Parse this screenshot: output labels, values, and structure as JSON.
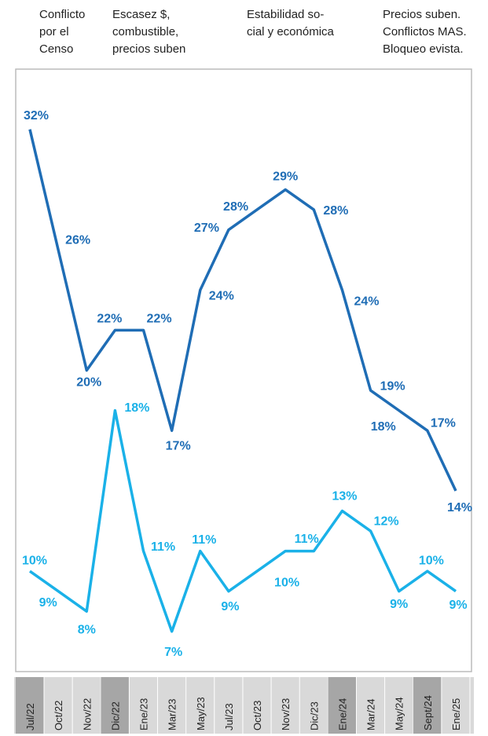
{
  "chart_data": {
    "type": "line",
    "annotations": [
      [
        "Conflicto",
        "por el",
        "Censo"
      ],
      [
        "Escasez $,",
        "combustible,",
        "precios suben"
      ],
      [
        "Estabilidad so-",
        "cial y económica"
      ],
      [
        "Precios suben.",
        "Conflictos MAS.",
        "Bloqueo evista."
      ]
    ],
    "categories": [
      "Jul/22",
      "Oct/22",
      "Nov/22",
      "Dic/22",
      "Ene/23",
      "Mar/23",
      "May/23",
      "Jul/23",
      "Oct/23",
      "Nov/23",
      "Dic/23",
      "Ene/24",
      "Mar/24",
      "May/24",
      "Sept/24",
      "Ene/25"
    ],
    "series": [
      {
        "color": "#1f6db5",
        "values": [
          32,
          26,
          20,
          22,
          22,
          17,
          24,
          27,
          28,
          29,
          28,
          24,
          19,
          18,
          17,
          14
        ],
        "value_labels": [
          "32%",
          "26%",
          "20%",
          "22%",
          "22%",
          "17%",
          "24%",
          "27%",
          "28%",
          "29%",
          "28%",
          "24%",
          "19%",
          "18%",
          "17%",
          "14%"
        ]
      },
      {
        "color": "#1ab1e8",
        "values": [
          10,
          9,
          8,
          18,
          11,
          7,
          11,
          9,
          10,
          11,
          11,
          13,
          12,
          9,
          10,
          9
        ],
        "value_labels": [
          "10%",
          "9%",
          "8%",
          "18%",
          "11%",
          "7%",
          "11%",
          "9%",
          "10%",
          "11%",
          null,
          "13%",
          "12%",
          "9%",
          "10%",
          "9%"
        ]
      }
    ],
    "ylim": [
      5,
      35
    ]
  }
}
